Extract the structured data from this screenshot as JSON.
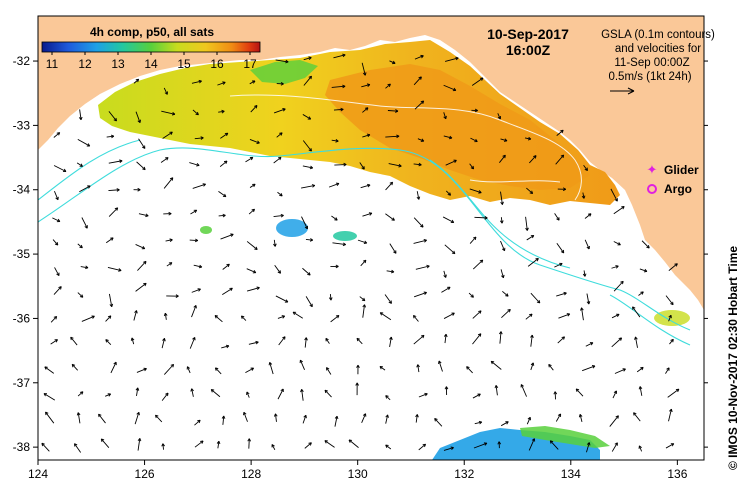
{
  "colorbar": {
    "title": "4h comp, p50, all sats",
    "ticks": [
      "11",
      "12",
      "13",
      "14",
      "15",
      "16",
      "17"
    ],
    "colors": [
      "#0a1a8c",
      "#1e5adc",
      "#1ea0e6",
      "#22c8a0",
      "#58d03c",
      "#c8dc1e",
      "#f0c81e",
      "#f08c14",
      "#e03c10",
      "#b41414"
    ]
  },
  "date_label": "10-Sep-2017",
  "time_label": "16:00Z",
  "annotation_lines": [
    "GSLA (0.1m contours)",
    "and velocities for",
    "11-Sep 00:00Z",
    "0.5m/s (1kt 24h)"
  ],
  "legend": {
    "glider": "Glider",
    "argo": "Argo",
    "glider_color": "#e020e0",
    "argo_color": "#e020e0"
  },
  "credit": "© IMOS 10-Nov-2017 02:30 Hobart Time",
  "axes": {
    "x_ticks": [
      "124",
      "126",
      "128",
      "130",
      "132",
      "134",
      "136"
    ],
    "y_ticks": [
      "-32",
      "-33",
      "-34",
      "-35",
      "-36",
      "-37",
      "-38"
    ],
    "lon_range": [
      124,
      136.5
    ],
    "lat_range": [
      -38.2,
      -31.3
    ]
  },
  "colors": {
    "land": "#fac898",
    "ocean": "#ffffff",
    "contour": "#3fdcdc",
    "vector": "#000000",
    "frame": "#000000"
  }
}
